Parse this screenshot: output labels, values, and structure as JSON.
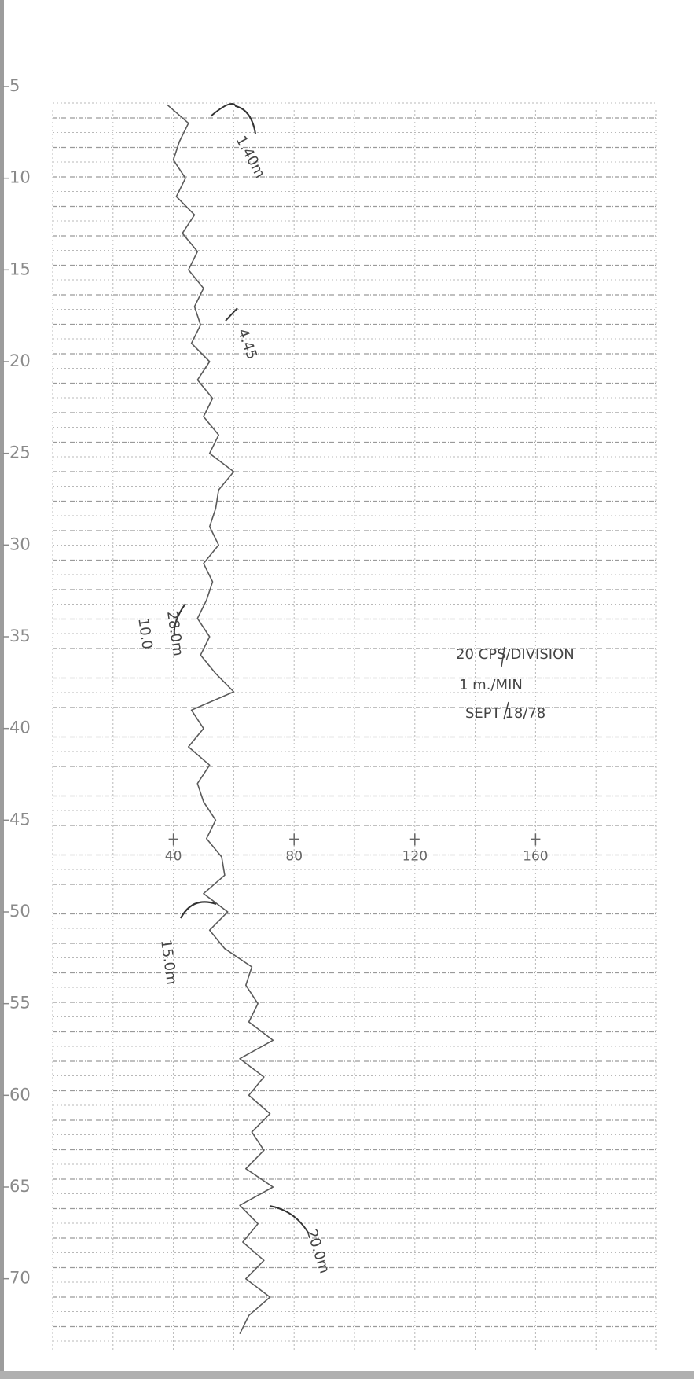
{
  "chart_data": {
    "type": "line",
    "y": [
      6,
      7,
      8,
      9,
      10,
      11,
      12,
      13,
      14,
      15,
      16,
      17,
      18,
      19,
      20,
      21,
      22,
      23,
      24,
      25,
      26,
      27,
      28,
      29,
      30,
      31,
      32,
      33,
      34,
      35,
      36,
      37,
      38,
      39,
      40,
      41,
      42,
      43,
      44,
      45,
      46,
      47,
      48,
      49,
      50,
      51,
      52,
      53,
      54,
      55,
      56,
      57,
      58,
      59,
      60,
      61,
      62,
      63,
      64,
      65,
      66,
      67,
      68,
      69,
      70,
      71,
      72,
      73
    ],
    "values": [
      38,
      45,
      42,
      40,
      44,
      41,
      47,
      43,
      48,
      45,
      50,
      47,
      49,
      46,
      52,
      48,
      53,
      50,
      55,
      52,
      60,
      55,
      54,
      52,
      55,
      50,
      53,
      51,
      48,
      52,
      49,
      54,
      60,
      46,
      50,
      45,
      52,
      48,
      50,
      54,
      51,
      56,
      57,
      50,
      58,
      52,
      57,
      66,
      64,
      68,
      65,
      73,
      62,
      70,
      65,
      72,
      66,
      70,
      64,
      73,
      62,
      68,
      63,
      70,
      64,
      72,
      65,
      62
    ],
    "color": "#5a5a5a",
    "xlim": [
      0,
      200
    ],
    "xticks": [
      40,
      80,
      120,
      160
    ],
    "ylim": [
      5,
      74
    ],
    "yticks": [
      5,
      10,
      15,
      20,
      25,
      30,
      35,
      40,
      45,
      50,
      55,
      60,
      65,
      70
    ],
    "y_inverted": true,
    "annotations": [
      "1.40m",
      "4.45",
      "28.0m",
      "10.0",
      "20 CPS/DIVISION",
      "1 m./MIN",
      "SEPT 18/78",
      "15.0m",
      "20.0m"
    ]
  }
}
